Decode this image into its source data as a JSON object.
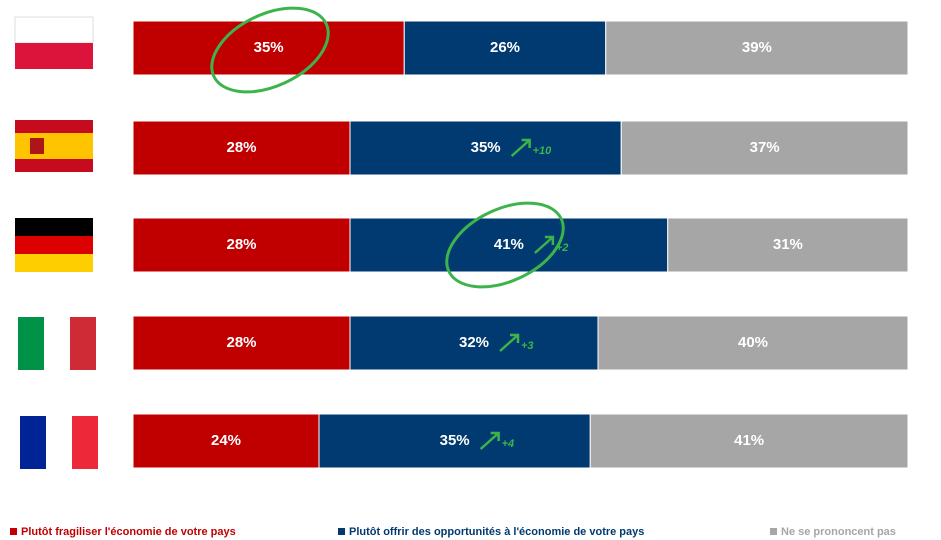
{
  "chart_data": {
    "type": "stacked-bar-horizontal",
    "categories": [
      null,
      null,
      null,
      null,
      null
    ],
    "xlim": [
      0,
      100
    ],
    "series": [
      {
        "name": "Plutôt fragiliser l'économie de votre pays",
        "color": "#c00000",
        "values": [
          35,
          28,
          28,
          28,
          24
        ],
        "value_labels": [
          "35%",
          "28%",
          "28%",
          "28%",
          "24%"
        ]
      },
      {
        "name": "Plutôt offrir des opportunités à l'économie de votre pays",
        "color": "#003a70",
        "values": [
          26,
          35,
          41,
          32,
          35
        ],
        "value_labels": [
          "26%",
          "35%",
          "41%",
          "32%",
          "35%"
        ],
        "change_labels": [
          null,
          "+10",
          "+2",
          "+3",
          "+4"
        ]
      },
      {
        "name": "Ne se prononcent pas",
        "color": "#a6a6a6",
        "values": [
          39,
          37,
          31,
          40,
          41
        ],
        "value_labels": [
          "39%",
          "37%",
          "31%",
          "40%",
          "41%"
        ]
      }
    ],
    "legend": "bottom"
  }
}
